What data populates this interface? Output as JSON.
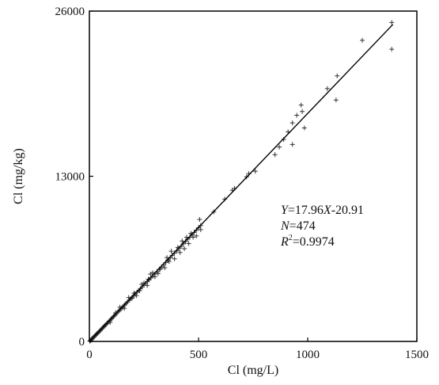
{
  "chart_data": {
    "type": "scatter",
    "title": "",
    "xlabel": "Cl (mg/L)",
    "ylabel": "Cl (mg/kg)",
    "xlim": [
      0,
      1500
    ],
    "ylim": [
      0,
      26000
    ],
    "x_ticks": [
      0,
      500,
      1000,
      1500
    ],
    "y_ticks": [
      0,
      13000,
      26000
    ],
    "grid": false,
    "legend": "none",
    "marker": "+",
    "colors": {
      "points": "#333333",
      "line": "#000000",
      "frame": "#000000"
    },
    "annotation": {
      "equation_var_y": "Y",
      "equation_text": "=17.96",
      "equation_var_x": "X",
      "equation_tail": "-20.91",
      "n_label": "N",
      "n_value": "=474",
      "r2_label": "R",
      "r2_sup": "2",
      "r2_value": "=0.9974"
    },
    "fit_line": {
      "slope": 17.96,
      "intercept": -20.91,
      "x_range": [
        0,
        1390
      ]
    },
    "points": [
      [
        2,
        20
      ],
      [
        5,
        60
      ],
      [
        8,
        120
      ],
      [
        10,
        170
      ],
      [
        13,
        210
      ],
      [
        16,
        270
      ],
      [
        19,
        330
      ],
      [
        22,
        380
      ],
      [
        25,
        430
      ],
      [
        28,
        480
      ],
      [
        31,
        530
      ],
      [
        34,
        590
      ],
      [
        37,
        640
      ],
      [
        40,
        700
      ],
      [
        44,
        760
      ],
      [
        48,
        830
      ],
      [
        52,
        900
      ],
      [
        56,
        980
      ],
      [
        60,
        1050
      ],
      [
        64,
        1120
      ],
      [
        68,
        1200
      ],
      [
        72,
        1260
      ],
      [
        76,
        1330
      ],
      [
        80,
        1400
      ],
      [
        85,
        1490
      ],
      [
        90,
        1580
      ],
      [
        95,
        1670
      ],
      [
        100,
        1760
      ],
      [
        105,
        1850
      ],
      [
        110,
        1950
      ],
      [
        115,
        2040
      ],
      [
        120,
        2130
      ],
      [
        126,
        2240
      ],
      [
        132,
        2350
      ],
      [
        138,
        2450
      ],
      [
        144,
        2560
      ],
      [
        150,
        2660
      ],
      [
        156,
        2770
      ],
      [
        162,
        2880
      ],
      [
        168,
        2990
      ],
      [
        175,
        3110
      ],
      [
        182,
        3240
      ],
      [
        189,
        3360
      ],
      [
        196,
        3480
      ],
      [
        203,
        3600
      ],
      [
        210,
        3730
      ],
      [
        218,
        3870
      ],
      [
        226,
        4010
      ],
      [
        234,
        4150
      ],
      [
        242,
        4290
      ],
      [
        250,
        4430
      ],
      [
        258,
        4570
      ],
      [
        266,
        4720
      ],
      [
        274,
        4850
      ],
      [
        282,
        5000
      ],
      [
        290,
        5140
      ],
      [
        300,
        5300
      ],
      [
        310,
        5480
      ],
      [
        320,
        5670
      ],
      [
        330,
        5850
      ],
      [
        340,
        6030
      ],
      [
        350,
        6200
      ],
      [
        360,
        6400
      ],
      [
        370,
        6580
      ],
      [
        380,
        6770
      ],
      [
        390,
        6950
      ],
      [
        400,
        7130
      ],
      [
        410,
        7300
      ],
      [
        420,
        7480
      ],
      [
        430,
        7680
      ],
      [
        440,
        7850
      ],
      [
        450,
        8050
      ],
      [
        460,
        8200
      ],
      [
        470,
        8400
      ],
      [
        480,
        8580
      ],
      [
        490,
        8750
      ],
      [
        500,
        8950
      ],
      [
        510,
        9120
      ],
      [
        180,
        3450
      ],
      [
        195,
        3400
      ],
      [
        215,
        3600
      ],
      [
        240,
        4500
      ],
      [
        265,
        4400
      ],
      [
        280,
        5300
      ],
      [
        300,
        5100
      ],
      [
        315,
        5350
      ],
      [
        325,
        5700
      ],
      [
        345,
        5800
      ],
      [
        355,
        6600
      ],
      [
        365,
        6300
      ],
      [
        375,
        7100
      ],
      [
        390,
        6500
      ],
      [
        405,
        7400
      ],
      [
        415,
        7000
      ],
      [
        425,
        7900
      ],
      [
        435,
        7300
      ],
      [
        445,
        8200
      ],
      [
        455,
        7700
      ],
      [
        465,
        8500
      ],
      [
        475,
        8200
      ],
      [
        490,
        8300
      ],
      [
        505,
        9600
      ],
      [
        510,
        8800
      ],
      [
        290,
        5400
      ],
      [
        270,
        4900
      ],
      [
        250,
        4600
      ],
      [
        230,
        4000
      ],
      [
        205,
        3800
      ],
      [
        160,
        2600
      ],
      [
        140,
        2700
      ],
      [
        120,
        2250
      ],
      [
        95,
        1500
      ],
      [
        570,
        10200
      ],
      [
        620,
        11200
      ],
      [
        655,
        11900
      ],
      [
        665,
        12050
      ],
      [
        720,
        12950
      ],
      [
        730,
        13200
      ],
      [
        760,
        13400
      ],
      [
        850,
        14700
      ],
      [
        870,
        15300
      ],
      [
        890,
        15900
      ],
      [
        910,
        16500
      ],
      [
        930,
        17200
      ],
      [
        950,
        17800
      ],
      [
        975,
        18100
      ],
      [
        985,
        16800
      ],
      [
        930,
        15500
      ],
      [
        970,
        18600
      ],
      [
        1090,
        19900
      ],
      [
        1130,
        19000
      ],
      [
        1135,
        20900
      ],
      [
        1250,
        23700
      ],
      [
        1385,
        23000
      ],
      [
        1385,
        25100
      ]
    ]
  }
}
